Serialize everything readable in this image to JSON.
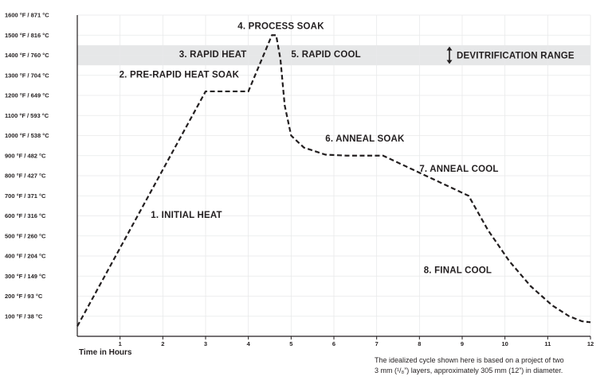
{
  "chart_data": {
    "type": "line",
    "xlabel": "Time in Hours",
    "xlim": [
      0,
      12
    ],
    "ylim": [
      0,
      1600
    ],
    "x_ticks": [
      {
        "value": 1,
        "label": "1"
      },
      {
        "value": 2,
        "label": "2"
      },
      {
        "value": 3,
        "label": "3"
      },
      {
        "value": 4,
        "label": "4"
      },
      {
        "value": 5,
        "label": "5"
      },
      {
        "value": 6,
        "label": "6"
      },
      {
        "value": 7,
        "label": "7"
      },
      {
        "value": 8,
        "label": "8"
      },
      {
        "value": 9,
        "label": "9"
      },
      {
        "value": 10,
        "label": "10"
      },
      {
        "value": 11,
        "label": "11"
      },
      {
        "value": 12,
        "label": "12"
      }
    ],
    "y_ticks": [
      {
        "value": 100,
        "label": "100 °F / 38 °C"
      },
      {
        "value": 200,
        "label": "200 °F / 93 °C"
      },
      {
        "value": 300,
        "label": "300 °F / 149 °C"
      },
      {
        "value": 400,
        "label": "400 °F / 204 °C"
      },
      {
        "value": 500,
        "label": "500 °F / 260 °C"
      },
      {
        "value": 600,
        "label": "600 °F / 316 °C"
      },
      {
        "value": 700,
        "label": "700 °F / 371 °C"
      },
      {
        "value": 800,
        "label": "800 °F / 427 °C"
      },
      {
        "value": 900,
        "label": "900 °F / 482 °C"
      },
      {
        "value": 1000,
        "label": "1000 °F / 538 °C"
      },
      {
        "value": 1100,
        "label": "1100 °F / 593 °C"
      },
      {
        "value": 1200,
        "label": "1200 °F / 649 °C"
      },
      {
        "value": 1300,
        "label": "1300 °F / 704 °C"
      },
      {
        "value": 1400,
        "label": "1400 °F / 760 °C"
      },
      {
        "value": 1500,
        "label": "1500 °F / 816 °C"
      },
      {
        "value": 1600,
        "label": "1600 °F / 871 °C"
      }
    ],
    "grid": true,
    "series": [
      {
        "style": "dashed",
        "color": "#231f20",
        "x": [
          0,
          3,
          4,
          4.55,
          4.65,
          4.75,
          4.85,
          5.0,
          5.3,
          5.8,
          6.3,
          7.15,
          9.15,
          9.6,
          10.1,
          10.6,
          11.1,
          11.5,
          11.8,
          12
        ],
        "y": [
          50,
          1220,
          1220,
          1500,
          1500,
          1380,
          1150,
          1000,
          940,
          905,
          900,
          900,
          700,
          530,
          375,
          250,
          155,
          100,
          75,
          70
        ]
      }
    ],
    "bands": [
      {
        "y0": 1350,
        "y1": 1450,
        "label": "DEVITRIFICATION RANGE",
        "color": "#e6e7e8"
      }
    ],
    "annotations": [
      {
        "text": "1. INITIAL HEAT",
        "x": 1.72,
        "y": 590
      },
      {
        "text": "2. PRE-RAPID HEAT SOAK",
        "x": 0.98,
        "y": 1290
      },
      {
        "text": "3. RAPID HEAT",
        "x": 2.38,
        "y": 1390
      },
      {
        "text": "4. PROCESS SOAK",
        "x": 3.75,
        "y": 1530
      },
      {
        "text": "5. RAPID COOL",
        "x": 5.0,
        "y": 1390
      },
      {
        "text": "6. ANNEAL SOAK",
        "x": 5.8,
        "y": 970
      },
      {
        "text": "7. ANNEAL COOL",
        "x": 8.0,
        "y": 820
      },
      {
        "text": "8. FINAL COOL",
        "x": 8.1,
        "y": 315
      }
    ]
  },
  "footnote": {
    "line1": "The idealized cycle shown here is based on a project of two",
    "line2": "3 mm (¹/₈”) layers, approximately 305 mm (12”) in diameter."
  },
  "icons": {
    "devitrification_marker": "up-down-arrow-icon"
  }
}
